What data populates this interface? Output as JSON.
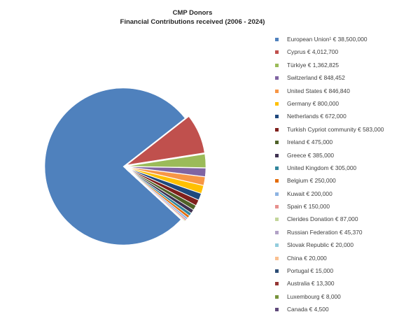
{
  "chart_data": {
    "type": "pie",
    "title": "CMP Donors",
    "subtitle": "Financial Contributions  received (2006 - 2024)",
    "legend_position": "right",
    "slices": [
      {
        "label": "European Union¹ € 38,500,000",
        "value": 38500000,
        "color": "#4f81bd"
      },
      {
        "label": "Cyprus € 4,012,700",
        "value": 4012700,
        "color": "#c0504d"
      },
      {
        "label": "Türkiye € 1,362,825",
        "value": 1362825,
        "color": "#9bbb59"
      },
      {
        "label": "Switzerland € 848,452",
        "value": 848452,
        "color": "#8064a2"
      },
      {
        "label": "United States  € 846,840",
        "value": 846840,
        "color": "#f79646"
      },
      {
        "label": "Germany € 800,000",
        "value": 800000,
        "color": "#ffc000"
      },
      {
        "label": "Netherlands € 672,000",
        "value": 672000,
        "color": "#1f497d"
      },
      {
        "label": "Turkish Cypriot community € 583,000",
        "value": 583000,
        "color": "#7f1f1c"
      },
      {
        "label": "Ireland € 475,000",
        "value": 475000,
        "color": "#4f6228"
      },
      {
        "label": "Greece € 385,000",
        "value": 385000,
        "color": "#3f3151"
      },
      {
        "label": "United Kingdom € 305,000",
        "value": 305000,
        "color": "#31859c"
      },
      {
        "label": "Belgium  € 250,000",
        "value": 250000,
        "color": "#e36c09"
      },
      {
        "label": "Kuwait € 200,000",
        "value": 200000,
        "color": "#8db3e2"
      },
      {
        "label": "Spain  € 150,000",
        "value": 150000,
        "color": "#e6908e"
      },
      {
        "label": "Clerides Donation € 87,000",
        "value": 87000,
        "color": "#c3d69b"
      },
      {
        "label": "Russian Federation € 45,370",
        "value": 45370,
        "color": "#b2a2c7"
      },
      {
        "label": "Slovak Republic € 20,000",
        "value": 20000,
        "color": "#93cddd"
      },
      {
        "label": "China € 20,000",
        "value": 20000,
        "color": "#fac090"
      },
      {
        "label": "Portugal € 15,000",
        "value": 15000,
        "color": "#2c4d75"
      },
      {
        "label": "Australia  € 13,300",
        "value": 13300,
        "color": "#943634"
      },
      {
        "label": "Luxembourg € 8,000",
        "value": 8000,
        "color": "#77933c"
      },
      {
        "label": "Canada € 4,500",
        "value": 4500,
        "color": "#5f497a"
      }
    ]
  }
}
